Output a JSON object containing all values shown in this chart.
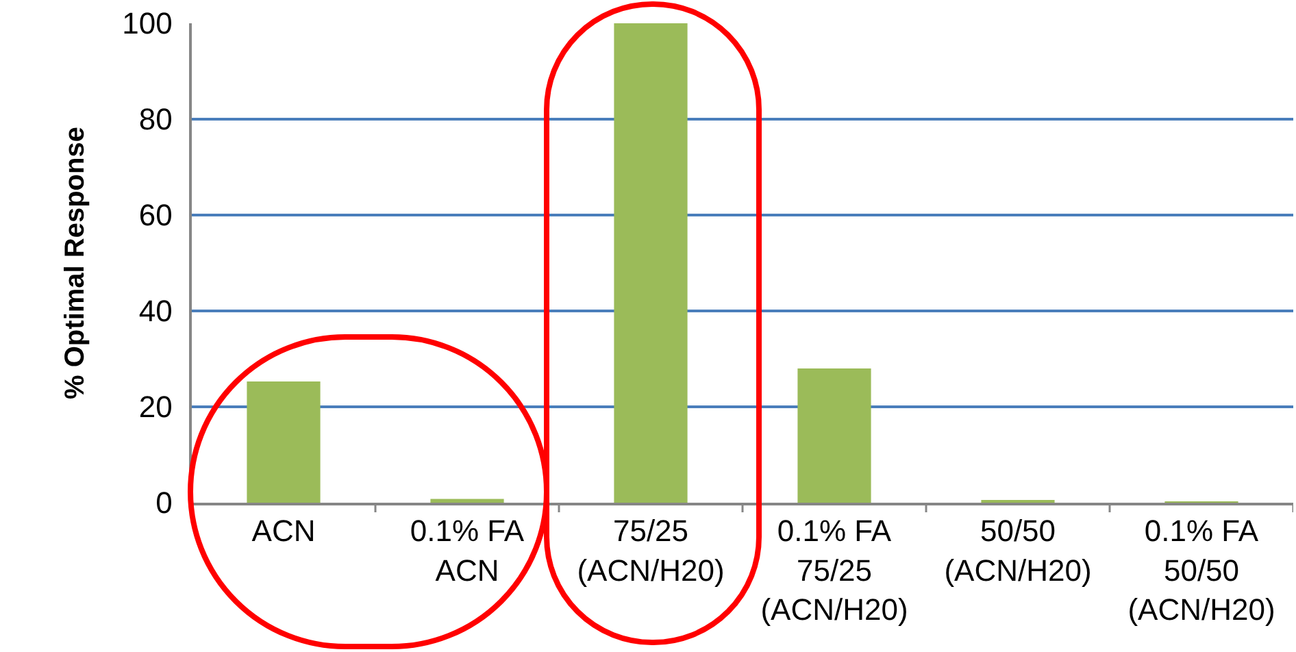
{
  "chart_data": {
    "type": "bar",
    "ylabel": "% Optimal Response",
    "categories": [
      "ACN",
      "0.1% FA\nACN",
      "75/25\n(ACN/H20)",
      "0.1% FA\n75/25\n(ACN/H20)",
      "50/50\n(ACN/H20)",
      "0.1% FA\n50/50\n(ACN/H20)"
    ],
    "values": [
      25.3,
      0.8,
      100,
      28,
      0.5,
      0.2
    ],
    "color": "#9bbb59",
    "ylim": [
      0,
      100
    ],
    "yticks": [
      0,
      20,
      40,
      60,
      80,
      100
    ],
    "grid": "y"
  }
}
